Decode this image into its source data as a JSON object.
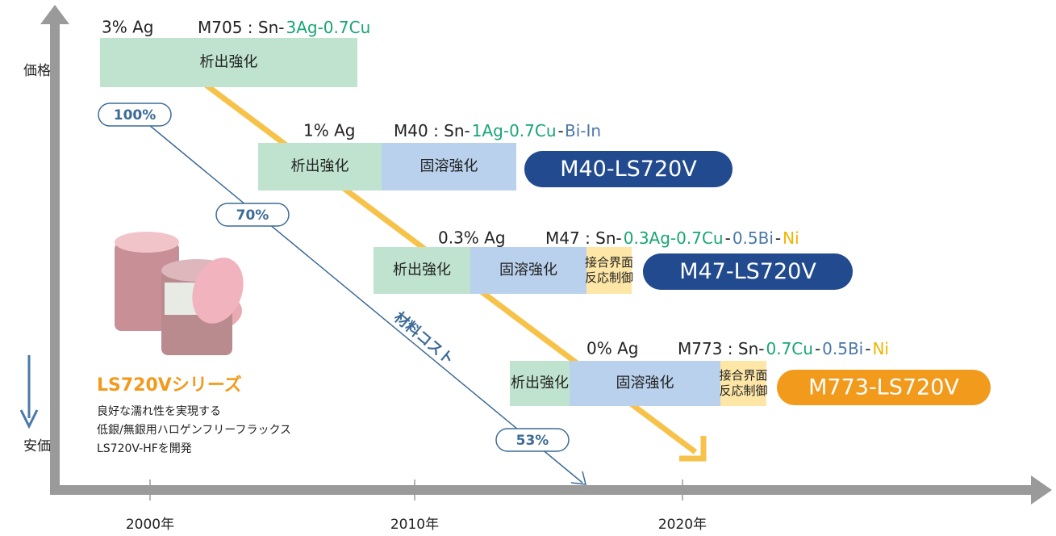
{
  "axes": {
    "y_top": "価格",
    "y_bottom": "安価",
    "x_ticks": [
      "2000年",
      "2010年",
      "2020年"
    ]
  },
  "cost_line": {
    "label": "材料コスト",
    "points": [
      "100%",
      "70%",
      "53%"
    ]
  },
  "product": {
    "title": "LS720Vシリーズ",
    "lines": [
      "良好な濡れ性を実現する",
      "低銀/無銀用ハロゲンフリーフラックス",
      "LS720V-HFを開発"
    ]
  },
  "alloys": [
    {
      "ag": "3% Ag",
      "formula": [
        {
          "text": "M705 : Sn-",
          "color": "#222222"
        },
        {
          "text": "3Ag-0.7Cu",
          "color": "#17a673"
        }
      ],
      "blocks": [
        {
          "lines": [
            "析出強化"
          ],
          "color": "#bfe3cf"
        }
      ]
    },
    {
      "ag": "1% Ag",
      "formula": [
        {
          "text": "M40 : Sn-",
          "color": "#222222"
        },
        {
          "text": "1Ag-0.7Cu",
          "color": "#17a673"
        },
        {
          "text": "-",
          "color": "#222222"
        },
        {
          "text": "Bi-In",
          "color": "#4a78a8"
        }
      ],
      "blocks": [
        {
          "lines": [
            "析出強化"
          ],
          "color": "#bfe3cf"
        },
        {
          "lines": [
            "固溶強化"
          ],
          "color": "#b9d1ec"
        }
      ],
      "badge": {
        "text": "M40-LS720V",
        "color": "#214a8f"
      }
    },
    {
      "ag": "0.3% Ag",
      "formula": [
        {
          "text": "M47 : Sn-",
          "color": "#222222"
        },
        {
          "text": "0.3Ag-0.7Cu",
          "color": "#17a673"
        },
        {
          "text": "-",
          "color": "#222222"
        },
        {
          "text": "0.5Bi",
          "color": "#4a78a8"
        },
        {
          "text": "-",
          "color": "#222222"
        },
        {
          "text": "Ni",
          "color": "#f0b400"
        }
      ],
      "blocks": [
        {
          "lines": [
            "析出強化"
          ],
          "color": "#bfe3cf"
        },
        {
          "lines": [
            "固溶強化"
          ],
          "color": "#b9d1ec"
        },
        {
          "lines": [
            "接合界面",
            "反応制御"
          ],
          "color": "#fde6a6"
        }
      ],
      "badge": {
        "text": "M47-LS720V",
        "color": "#214a8f"
      }
    },
    {
      "ag": "0% Ag",
      "formula": [
        {
          "text": "M773 : Sn-",
          "color": "#222222"
        },
        {
          "text": "0.7Cu",
          "color": "#17a673"
        },
        {
          "text": "-",
          "color": "#222222"
        },
        {
          "text": "0.5Bi",
          "color": "#4a78a8"
        },
        {
          "text": "-",
          "color": "#222222"
        },
        {
          "text": "Ni",
          "color": "#f0b400"
        }
      ],
      "blocks": [
        {
          "lines": [
            "析出強化"
          ],
          "color": "#bfe3cf"
        },
        {
          "lines": [
            "固溶強化"
          ],
          "color": "#b9d1ec"
        },
        {
          "lines": [
            "接合界面",
            "反応制御"
          ],
          "color": "#fde6a6"
        }
      ],
      "badge": {
        "text": "M773-LS720V",
        "color": "#f29a1c"
      }
    }
  ]
}
